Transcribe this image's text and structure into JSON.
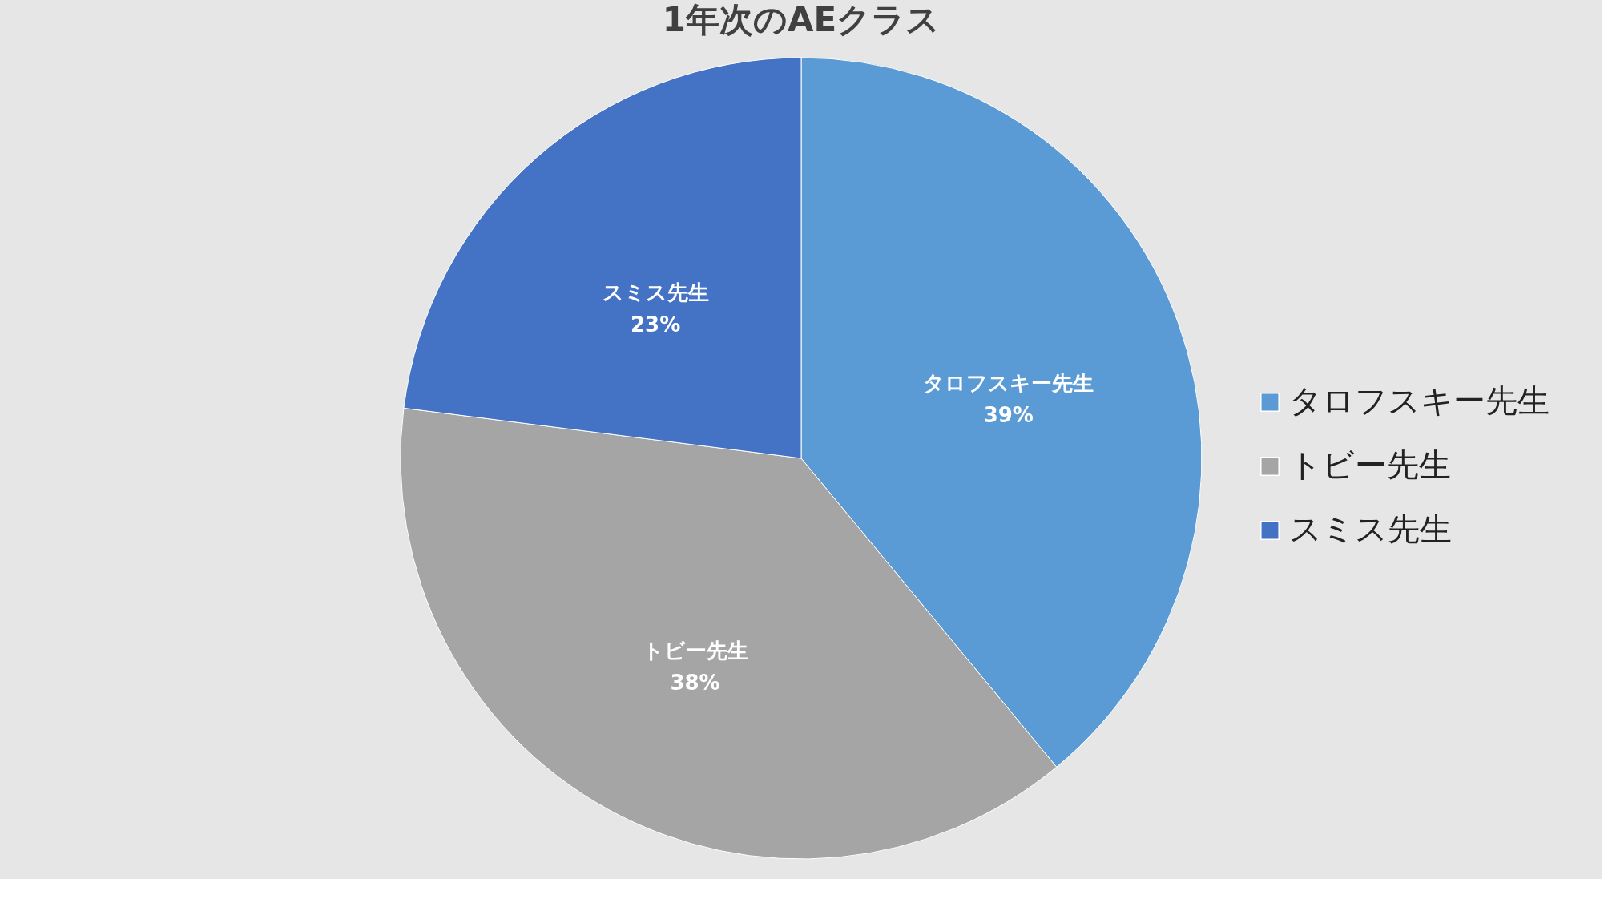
{
  "chart_data": {
    "type": "pie",
    "title": "1年次のAEクラス",
    "categories": [
      "タロフスキー先生",
      "トビー先生",
      "スミス先生"
    ],
    "values": [
      39,
      38,
      23
    ],
    "colors": [
      "#5b9bd5",
      "#a5a5a5",
      "#4472c4"
    ],
    "value_labels": [
      "39%",
      "38%",
      "23%"
    ],
    "legend": "right"
  }
}
